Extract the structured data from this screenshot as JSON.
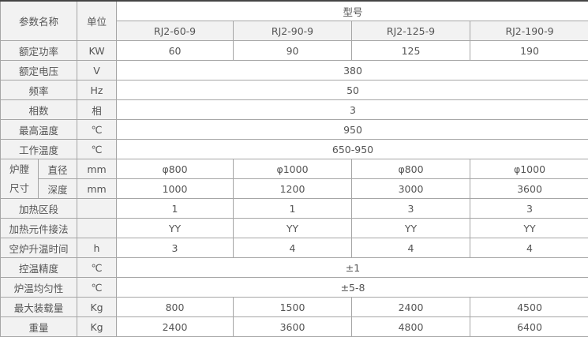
{
  "header": {
    "param_name": "参数名称",
    "unit": "单位",
    "model_group": "型号",
    "models": [
      "RJ2-60-9",
      "RJ2-90-9",
      "RJ2-125-9",
      "RJ2-190-9"
    ]
  },
  "chamber_group_label": [
    "炉膛",
    "尺寸"
  ],
  "rows": [
    {
      "name": "额定功率",
      "unit": "KW",
      "values": [
        "60",
        "90",
        "125",
        "190"
      ]
    },
    {
      "name": "额定电压",
      "unit": "V",
      "values": [
        "380"
      ]
    },
    {
      "name": "频率",
      "unit": "Hz",
      "values": [
        "50"
      ]
    },
    {
      "name": "相数",
      "unit": "相",
      "values": [
        "3"
      ]
    },
    {
      "name": "最高温度",
      "unit": "℃",
      "values": [
        "950"
      ]
    },
    {
      "name": "工作温度",
      "unit": "℃",
      "values": [
        "650-950"
      ]
    },
    {
      "name": "直径",
      "unit": "mm",
      "values": [
        "φ800",
        "φ1000",
        "φ800",
        "φ1000"
      ],
      "sub": true
    },
    {
      "name": "深度",
      "unit": "mm",
      "values": [
        "1000",
        "1200",
        "3000",
        "3600"
      ],
      "sub": true
    },
    {
      "name": "加热区段",
      "unit": "",
      "values": [
        "1",
        "1",
        "3",
        "3"
      ]
    },
    {
      "name": "加热元件接法",
      "unit": "",
      "values": [
        "YY",
        "YY",
        "YY",
        "YY"
      ]
    },
    {
      "name": "空炉升温时间",
      "unit": "h",
      "values": [
        "3",
        "4",
        "4",
        "4"
      ]
    },
    {
      "name": "控温精度",
      "unit": "℃",
      "values": [
        "±1"
      ]
    },
    {
      "name": "炉温均匀性",
      "unit": "℃",
      "values": [
        "±5-8"
      ]
    },
    {
      "name": "最大装载量",
      "unit": "Kg",
      "values": [
        "800",
        "1500",
        "2400",
        "4500"
      ]
    },
    {
      "name": "重量",
      "unit": "Kg",
      "values": [
        "2400",
        "3600",
        "4800",
        "6400"
      ]
    }
  ]
}
